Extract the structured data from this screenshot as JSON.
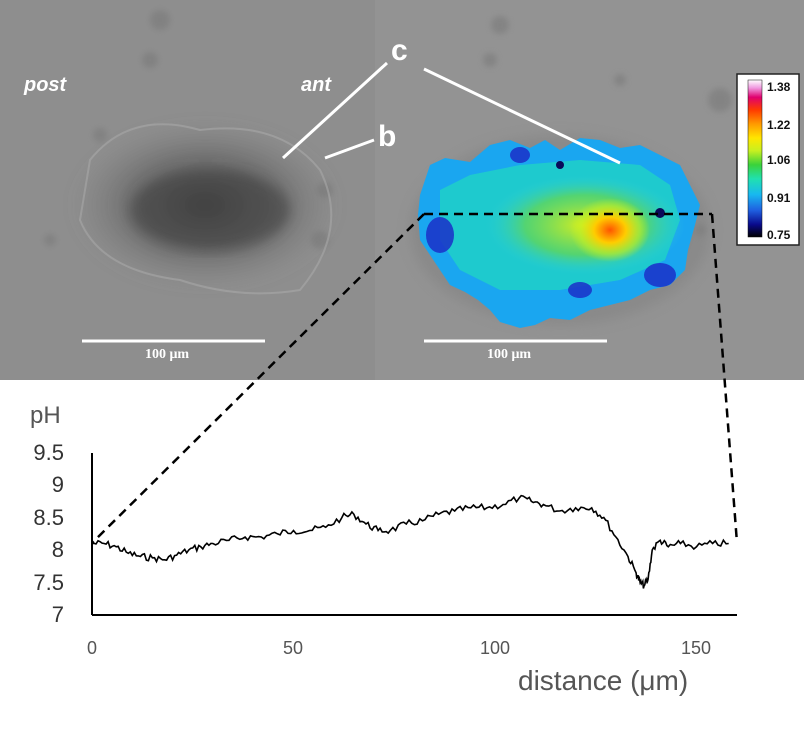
{
  "labels": {
    "post": "post",
    "ant": "ant",
    "c": "c",
    "b": "b",
    "scalebar_left": "100 μm",
    "scalebar_right": "100 μm"
  },
  "colorbar": {
    "ticks": [
      "1.38",
      "1.22",
      "1.06",
      "0.91",
      "0.75"
    ],
    "colors": [
      "#000000",
      "#0a0a8c",
      "#1f5fe0",
      "#18b8f0",
      "#20e0b0",
      "#3ad23a",
      "#c8f020",
      "#ffe600",
      "#ff9a00",
      "#ff3a00",
      "#e0006e",
      "#f09ae0",
      "#ffffff"
    ]
  },
  "chart_data": {
    "type": "line",
    "ylabel": "pH",
    "xlabel": "distance (μm)",
    "xlim": [
      0,
      160
    ],
    "ylim": [
      7,
      9.5
    ],
    "yticks": [
      "9.5",
      "9",
      "8.5",
      "8",
      "7.5",
      "7"
    ],
    "xticks": [
      "0",
      "50",
      "100",
      "150"
    ],
    "series": [
      {
        "x": [
          0,
          3,
          6,
          9,
          12,
          15,
          18,
          21,
          24,
          27,
          30,
          34,
          38,
          42,
          46,
          50,
          54,
          58,
          62,
          65,
          68,
          71,
          74,
          78,
          82,
          86,
          90,
          94,
          98,
          102,
          106,
          109,
          112,
          116,
          120,
          124,
          127,
          130,
          133,
          135,
          136,
          137,
          138,
          139,
          141,
          143,
          146,
          150,
          154,
          158
        ],
        "y": [
          8.1,
          8.1,
          8.05,
          7.95,
          7.9,
          7.88,
          7.85,
          7.92,
          8.0,
          8.05,
          8.1,
          8.15,
          8.2,
          8.2,
          8.25,
          8.3,
          8.3,
          8.35,
          8.5,
          8.55,
          8.4,
          8.3,
          8.3,
          8.4,
          8.45,
          8.55,
          8.6,
          8.65,
          8.65,
          8.7,
          8.8,
          8.75,
          8.7,
          8.6,
          8.65,
          8.65,
          8.5,
          8.2,
          7.9,
          7.65,
          7.5,
          7.45,
          7.55,
          8.0,
          8.15,
          8.05,
          8.1,
          8.05,
          8.1,
          8.1
        ]
      }
    ]
  }
}
